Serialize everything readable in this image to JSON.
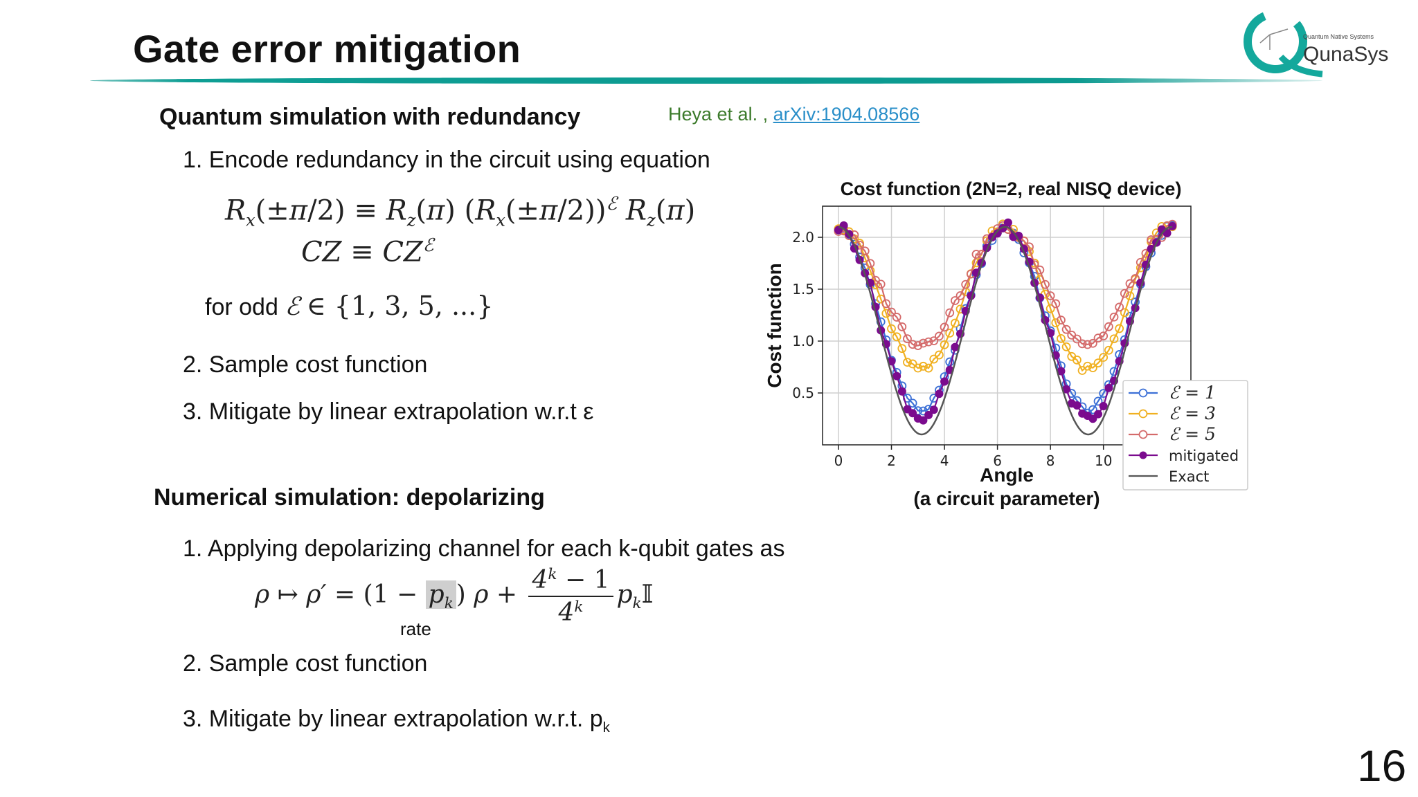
{
  "slide": {
    "title": "Gate error mitigation",
    "page_number": "16",
    "logo": {
      "tagline": "Quantum Native Systems",
      "name": "QunaSys"
    }
  },
  "reference": {
    "authors": "Heya et al. ,",
    "link_text": "arXiv:1904.08566"
  },
  "section1": {
    "heading": "Quantum simulation with redundancy",
    "step1": "1. Encode redundancy in the circuit using equation",
    "eq1_lhs": "R",
    "eq2": "CZ ≡ CZ",
    "odd_prefix": "for odd ",
    "odd_set": "∈ {1, 3, 5, ...}",
    "step2": "2. Sample cost function",
    "step3": "3. Mitigate by linear extrapolation w.r.t ε"
  },
  "section2": {
    "heading": "Numerical simulation: depolarizing",
    "step1": "1. Applying depolarizing channel for each k-qubit gates as",
    "rate_label": "rate",
    "step2": "2. Sample cost function",
    "step3": "3. Mitigate by linear extrapolation w.r.t. p",
    "step3_sub": "k"
  },
  "colors": {
    "accent": "#0e9e94",
    "e1": "#3b6fd6",
    "e3": "#f0b020",
    "e5": "#d46a6a",
    "mitigated": "#7b0b8e",
    "exact": "#555555"
  },
  "chart_data": {
    "type": "line",
    "title": "Cost function (2N=2, real NISQ device)",
    "xlabel": "Angle",
    "xlabel2": "(a circuit parameter)",
    "ylabel": "Cost function",
    "xlim": [
      -0.6,
      13.3
    ],
    "ylim": [
      0.0,
      2.3
    ],
    "xticks": [
      0,
      2,
      4,
      6,
      8,
      10
    ],
    "yticks": [
      0.5,
      1.0,
      1.5,
      2.0
    ],
    "grid": true,
    "legend": "right",
    "series": [
      {
        "name": "ℰ = 1",
        "legend_text": "ℰ = 1",
        "color": "#3b6fd6",
        "marker": "open",
        "center": 1.21,
        "amp": 0.88,
        "noise": 0.03
      },
      {
        "name": "ℰ = 3",
        "legend_text": "ℰ = 3",
        "color": "#f0b020",
        "marker": "open",
        "center": 1.42,
        "amp": 0.7,
        "noise": 0.04
      },
      {
        "name": "ℰ = 5",
        "legend_text": "ℰ = 5",
        "color": "#d46a6a",
        "marker": "open",
        "center": 1.53,
        "amp": 0.55,
        "noise": 0.05
      },
      {
        "name": "mitigated",
        "legend_text": "mitigated",
        "color": "#7b0b8e",
        "marker": "filled",
        "center": 1.18,
        "amp": 0.92,
        "noise": 0.05
      },
      {
        "name": "Exact",
        "legend_text": "Exact",
        "color": "#555555",
        "marker": "none",
        "center": 1.1,
        "amp": 1.0,
        "noise": 0.0
      }
    ],
    "model": "y = center + amp * cos(x)",
    "x_samples": {
      "start": 0.0,
      "end": 12.6,
      "count": 64
    }
  }
}
